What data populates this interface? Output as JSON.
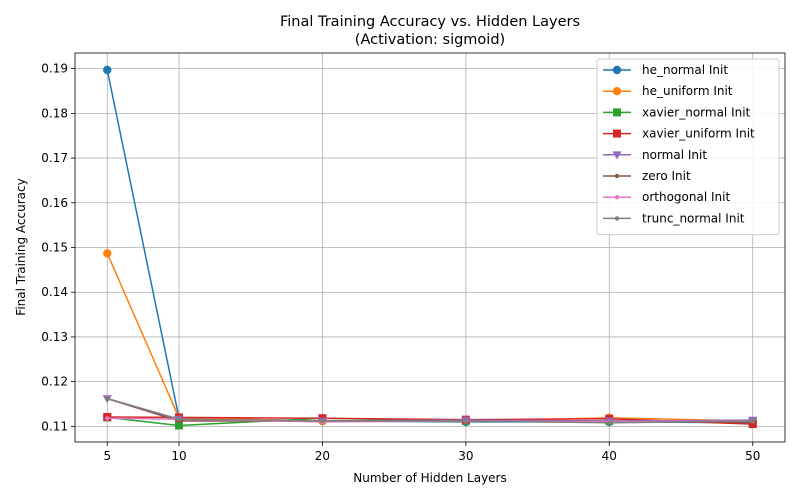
{
  "chart_data": {
    "type": "line",
    "title": "Final Training Accuracy vs. Hidden Layers",
    "subtitle": "(Activation: sigmoid)",
    "xlabel": "Number of Hidden Layers",
    "ylabel": "Final Training Accuracy",
    "x": [
      5,
      10,
      20,
      30,
      40,
      50
    ],
    "xticks": [
      5,
      10,
      20,
      30,
      40,
      50
    ],
    "yticks": [
      0.11,
      0.12,
      0.13,
      0.14,
      0.15,
      0.16,
      0.17,
      0.18,
      0.19
    ],
    "ytick_labels": [
      "0.11",
      "0.12",
      "0.13",
      "0.14",
      "0.15",
      "0.16",
      "0.17",
      "0.18",
      "0.19"
    ],
    "xlim": [
      2.75,
      52.25
    ],
    "ylim": [
      0.1065,
      0.1935
    ],
    "grid": true,
    "legend_position": "top-right",
    "series": [
      {
        "name": "he_normal Init",
        "color": "#1f77b4",
        "marker": "circle",
        "values": [
          0.1897,
          0.1119,
          0.1112,
          0.111,
          0.111,
          0.1108
        ]
      },
      {
        "name": "he_uniform Init",
        "color": "#ff7f0e",
        "marker": "circle",
        "values": [
          0.1487,
          0.1119,
          0.1112,
          0.1112,
          0.1119,
          0.1112
        ]
      },
      {
        "name": "xavier_normal Init",
        "color": "#2ca02c",
        "marker": "square",
        "values": [
          0.112,
          0.1102,
          0.1118,
          0.1112,
          0.1112,
          0.111
        ]
      },
      {
        "name": "xavier_uniform Init",
        "color": "#d62728",
        "marker": "square",
        "values": [
          0.1121,
          0.112,
          0.1118,
          0.1115,
          0.1117,
          0.1105
        ]
      },
      {
        "name": "normal Init",
        "color": "#9467bd",
        "marker": "triangle-down",
        "values": [
          0.1162,
          0.1116,
          0.1112,
          0.1114,
          0.1112,
          0.1114
        ]
      },
      {
        "name": "zero Init",
        "color": "#8c564b",
        "marker": "point",
        "values": [
          0.1162,
          0.1112,
          0.1112,
          0.1112,
          0.111,
          0.111
        ]
      },
      {
        "name": "orthogonal Init",
        "color": "#e377c2",
        "marker": "point",
        "values": [
          0.1118,
          0.1116,
          0.111,
          0.1112,
          0.111,
          0.1112
        ]
      },
      {
        "name": "trunc_normal Init",
        "color": "#7f7f7f",
        "marker": "point",
        "values": [
          0.1162,
          0.1116,
          0.1112,
          0.1112,
          0.1108,
          0.1112
        ]
      }
    ]
  }
}
